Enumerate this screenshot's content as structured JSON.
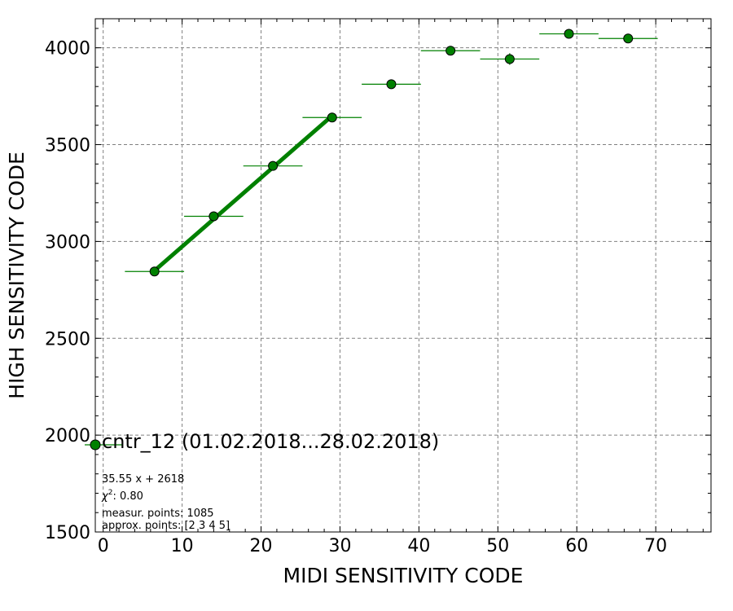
{
  "chart_data": {
    "type": "scatter",
    "title": "",
    "xlabel": "MIDI SENSITIVITY CODE",
    "ylabel": "HIGH SENSITIVITY CODE",
    "xlim": [
      -1,
      77
    ],
    "ylim": [
      1500,
      4150
    ],
    "grid": true,
    "x_ticks": [
      0,
      10,
      20,
      30,
      40,
      50,
      60,
      70
    ],
    "x_tick_labels": [
      "0",
      "10",
      "20",
      "30",
      "40",
      "50",
      "60",
      "70"
    ],
    "y_ticks": [
      1500,
      2000,
      2500,
      3000,
      3500,
      4000
    ],
    "y_tick_labels": [
      "1500",
      "2000",
      "2500",
      "3000",
      "3500",
      "4000"
    ],
    "colors": {
      "marker": "#008000",
      "marker_edge": "#000000",
      "fit": "#008000",
      "grid": "#808080"
    },
    "series": [
      {
        "name": "cntr_12 (01.02.2018...28.02.2018)",
        "x": [
          6.5,
          14.0,
          21.5,
          29.0,
          36.5,
          44.0,
          51.5,
          59.0,
          66.5
        ],
        "y": [
          2845,
          3130,
          3390,
          3640,
          3812,
          3985,
          3942,
          4072,
          4048
        ],
        "xerr": [
          3.75,
          3.75,
          3.75,
          3.75,
          3.75,
          3.75,
          3.75,
          3.75,
          3.75
        ],
        "yerr": [
          8,
          8,
          8,
          8,
          15,
          15,
          30,
          8,
          8
        ]
      }
    ],
    "fit": {
      "slope": 35.55,
      "intercept": 2618,
      "x_range": [
        6.5,
        29.0
      ]
    },
    "legend": {
      "placement": "lower-left",
      "label": "cntr_12 (01.02.2018...28.02.2018)"
    },
    "annotations": [
      "35.55 x + 2618",
      "measur. points: 1085",
      "approx. points: [2 3 4 5]"
    ],
    "chi2": {
      "symbol": "χ",
      "power": "2",
      "value": ": 0.80"
    }
  }
}
